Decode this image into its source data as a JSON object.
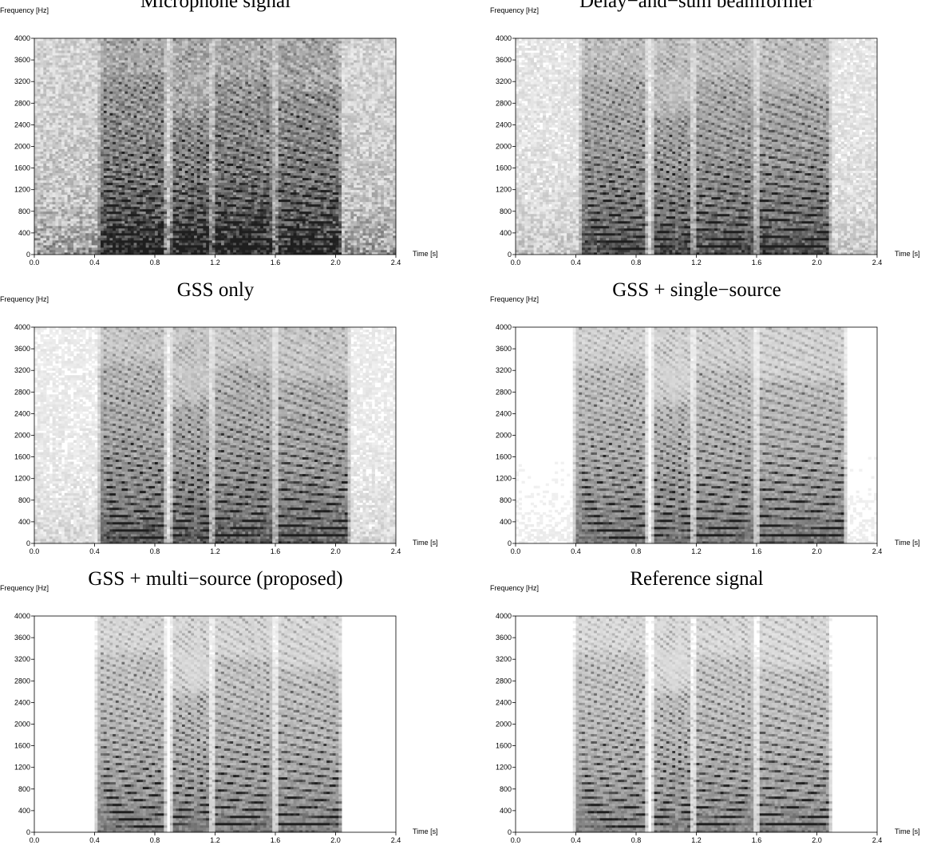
{
  "chart_data": [
    {
      "type": "heatmap",
      "title": "Microphone signal",
      "ylabel": "Frequency [Hz]",
      "xlabel": "Time [s]",
      "xlim": [
        0,
        2.4
      ],
      "ylim": [
        0,
        4000
      ],
      "xticks": [
        "0.0",
        "0.4",
        "0.8",
        "1.2",
        "1.6",
        "2.0",
        "2.4"
      ],
      "yticks": [
        "0",
        "400",
        "800",
        "1200",
        "1600",
        "2000",
        "2400",
        "2800",
        "3200",
        "3600",
        "4000"
      ],
      "colormap": "gray-reversed",
      "noise_floor": 0.32,
      "speech_onset": 0.42,
      "speech_offset": 2.05
    },
    {
      "type": "heatmap",
      "title": "Delay−and−sum beamformer",
      "ylabel": "Frequency [Hz]",
      "xlabel": "Time [s]",
      "xlim": [
        0,
        2.4
      ],
      "ylim": [
        0,
        4000
      ],
      "xticks": [
        "0.0",
        "0.4",
        "0.8",
        "1.2",
        "1.6",
        "2.0",
        "2.4"
      ],
      "yticks": [
        "0",
        "400",
        "800",
        "1200",
        "1600",
        "2000",
        "2400",
        "2800",
        "3200",
        "3600",
        "4000"
      ],
      "colormap": "gray-reversed",
      "noise_floor": 0.18,
      "speech_onset": 0.42,
      "speech_offset": 2.1
    },
    {
      "type": "heatmap",
      "title": "GSS only",
      "ylabel": "Frequency [Hz]",
      "xlabel": "Time [s]",
      "xlim": [
        0,
        2.4
      ],
      "ylim": [
        0,
        4000
      ],
      "xticks": [
        "0.0",
        "0.4",
        "0.8",
        "1.2",
        "1.6",
        "2.0",
        "2.4"
      ],
      "yticks": [
        "0",
        "400",
        "800",
        "1200",
        "1600",
        "2000",
        "2400",
        "2800",
        "3200",
        "3600",
        "4000"
      ],
      "colormap": "gray-reversed",
      "noise_floor": 0.13,
      "speech_onset": 0.42,
      "speech_offset": 2.1
    },
    {
      "type": "heatmap",
      "title": "GSS + single−source",
      "ylabel": "Frequency [Hz]",
      "xlabel": "Time [s]",
      "xlim": [
        0,
        2.4
      ],
      "ylim": [
        0,
        4000
      ],
      "xticks": [
        "0.0",
        "0.4",
        "0.8",
        "1.2",
        "1.6",
        "2.0",
        "2.4"
      ],
      "yticks": [
        "0",
        "400",
        "800",
        "1200",
        "1600",
        "2000",
        "2400",
        "2800",
        "3200",
        "3600",
        "4000"
      ],
      "colormap": "gray-reversed",
      "noise_floor": 0.05,
      "speech_onset": 0.38,
      "speech_offset": 2.2
    },
    {
      "type": "heatmap",
      "title": "GSS + multi−source (proposed)",
      "ylabel": "Frequency [Hz]",
      "xlabel": "Time [s]",
      "xlim": [
        0,
        2.4
      ],
      "ylim": [
        0,
        4000
      ],
      "xticks": [
        "0.0",
        "0.4",
        "0.8",
        "1.2",
        "1.6",
        "2.0",
        "2.4"
      ],
      "yticks": [
        "0",
        "400",
        "800",
        "1200",
        "1600",
        "2000",
        "2400",
        "2800",
        "3200",
        "3600",
        "4000"
      ],
      "colormap": "gray-reversed",
      "noise_floor": 0.02,
      "speech_onset": 0.4,
      "speech_offset": 2.05
    },
    {
      "type": "heatmap",
      "title": "Reference signal",
      "ylabel": "Frequency [Hz]",
      "xlabel": "Time [s]",
      "xlim": [
        0,
        2.4
      ],
      "ylim": [
        0,
        4000
      ],
      "xticks": [
        "0.0",
        "0.4",
        "0.8",
        "1.2",
        "1.6",
        "2.0",
        "2.4"
      ],
      "yticks": [
        "0",
        "400",
        "800",
        "1200",
        "1600",
        "2000",
        "2400",
        "2800",
        "3200",
        "3600",
        "4000"
      ],
      "colormap": "gray-reversed",
      "noise_floor": 0.0,
      "speech_onset": 0.38,
      "speech_offset": 2.1
    }
  ]
}
